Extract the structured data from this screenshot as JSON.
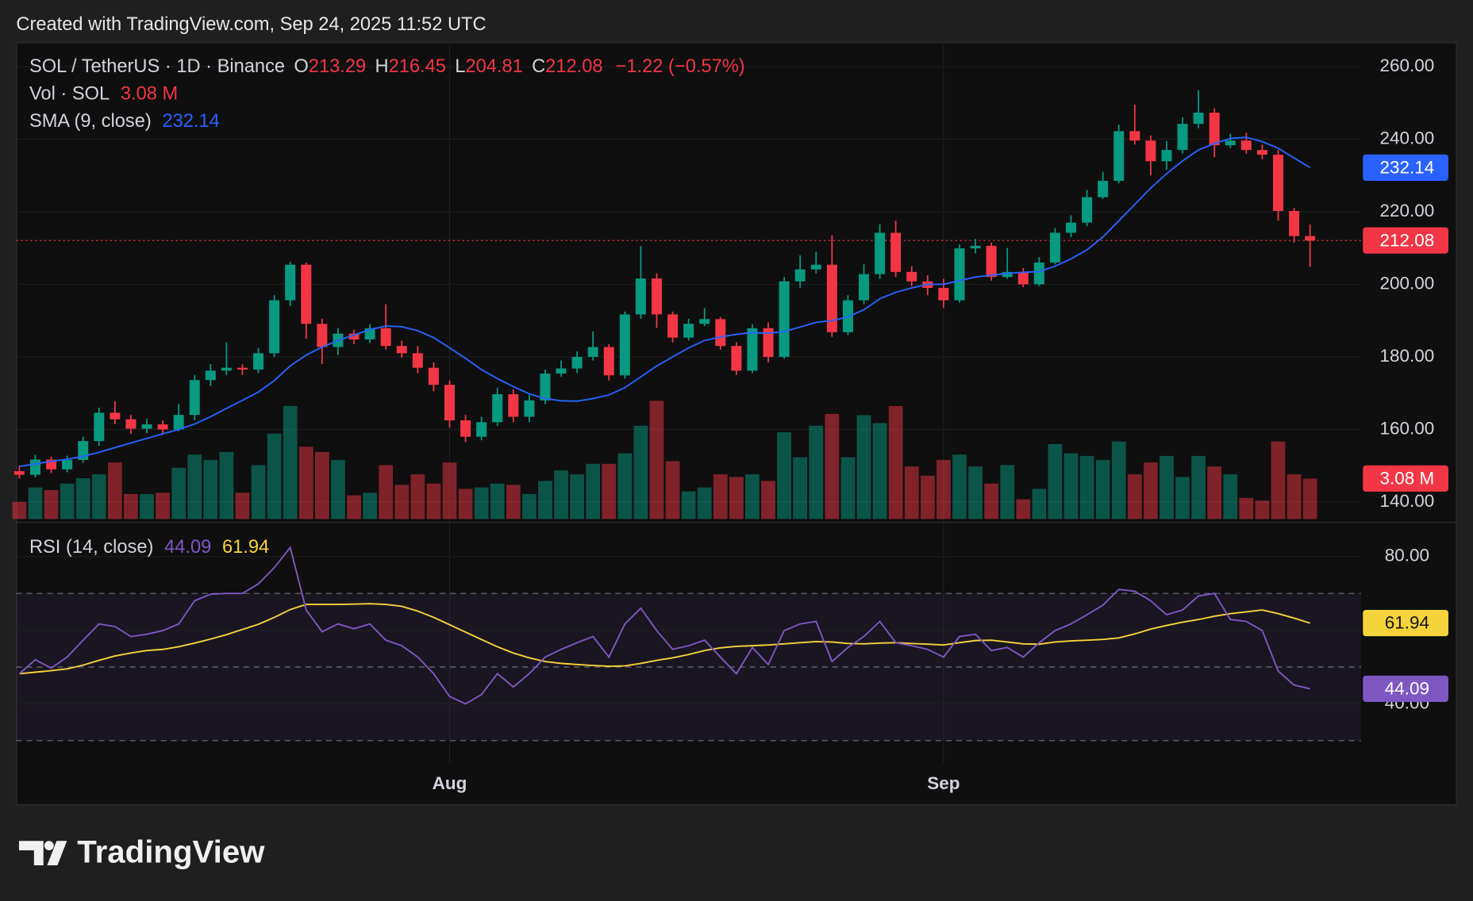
{
  "header": {
    "created": "Created with TradingView.com, Sep 24, 2025 11:52 UTC"
  },
  "footer": {
    "brand": "TradingView"
  },
  "chart_data": {
    "type": "candlestick",
    "symbol": "SOL / TetherUS · 1D · Binance",
    "legend_keys": [
      "O",
      "H",
      "L",
      "C"
    ],
    "change_label": "−1.22 (−0.57%)",
    "up_color": "#089981",
    "down_color": "#f23645",
    "open": [
      148.5,
      147.5,
      151.7,
      149,
      151.6,
      156.8,
      164.6,
      162.8,
      160.2,
      161.4,
      160,
      164,
      173.6,
      176.2,
      177,
      176.5,
      181,
      195.6,
      205.4,
      189.1,
      182.7,
      186.4,
      184.8,
      187.9,
      183,
      181,
      177,
      172.3,
      162.5,
      158,
      162,
      169.7,
      163.5,
      168,
      175.4,
      176.8,
      180,
      182.7,
      174.9,
      191.7,
      201.6,
      191.7,
      185.3,
      189.1,
      190.4,
      183,
      176.2,
      187.9,
      180,
      200.8,
      204.1,
      205.4,
      186.8,
      195.6,
      202.8,
      214.2,
      203.4,
      200.8,
      199,
      195.6,
      209.9,
      210.6,
      202,
      203.4,
      200,
      206,
      214.2,
      217,
      224,
      228.5,
      242.2,
      239.6,
      233.9,
      237,
      244.2,
      247.3,
      238.3,
      239.6,
      237,
      235.7,
      220.2,
      213.29
    ],
    "high": [
      150,
      153,
      152.5,
      152.8,
      158,
      166,
      167.8,
      164,
      163,
      162.5,
      167,
      175,
      178,
      184,
      178,
      182.5,
      197,
      206.2,
      206,
      190.5,
      188,
      187.5,
      189,
      194.5,
      184.5,
      183,
      178.5,
      173.5,
      164,
      163.5,
      171.5,
      171,
      169.5,
      176.5,
      179,
      181.5,
      187,
      183.5,
      192.5,
      210.5,
      203,
      192.5,
      190.5,
      193.5,
      191,
      184,
      189,
      189.5,
      202,
      208,
      209,
      213.5,
      197,
      205.5,
      216.5,
      217.5,
      205,
      202.5,
      201.5,
      211,
      212.5,
      211.5,
      210,
      204.5,
      207.5,
      215.5,
      219,
      226,
      231,
      244,
      249.5,
      241,
      239.5,
      246,
      253.5,
      248.5,
      241.5,
      241.8,
      238.5,
      237,
      221,
      216.45
    ],
    "low": [
      146.5,
      146.8,
      148,
      148.2,
      150.8,
      155.5,
      161.5,
      158.8,
      159,
      158.5,
      159.5,
      162.5,
      172,
      175,
      175,
      175.5,
      180,
      194,
      185,
      178,
      180.5,
      183.5,
      183.8,
      182,
      179.8,
      175.5,
      170.5,
      160.5,
      156.5,
      157,
      161,
      162,
      162,
      167,
      174.5,
      175.5,
      179,
      173.5,
      174,
      190.5,
      188,
      184,
      184.5,
      188.5,
      182,
      175,
      175.5,
      178.5,
      179.5,
      199,
      203,
      185.5,
      186,
      194.5,
      201.5,
      202,
      199.5,
      197,
      193.5,
      195,
      208.5,
      201,
      201.5,
      199.2,
      199.5,
      205.5,
      213,
      216,
      223.5,
      227.8,
      238.5,
      230,
      231.5,
      236,
      243,
      235,
      237.5,
      236,
      234.5,
      217.5,
      211.5,
      204.81
    ],
    "close": [
      147.5,
      151.7,
      149,
      151.6,
      156.8,
      164.6,
      162.8,
      160.2,
      161.4,
      160,
      164,
      173.6,
      176.2,
      177,
      176.5,
      181,
      195.6,
      205.4,
      189.1,
      182.7,
      186.4,
      184.8,
      187.9,
      183,
      181,
      177,
      172.3,
      162.5,
      158,
      162,
      169.7,
      163.5,
      168,
      175.4,
      176.8,
      180,
      182.7,
      174.9,
      191.7,
      201.6,
      191.7,
      185.3,
      189.1,
      190.4,
      183,
      176.2,
      187.9,
      180,
      200.8,
      204.1,
      205.4,
      186.8,
      195.6,
      202.8,
      214.2,
      203.4,
      200.8,
      199,
      195.6,
      209.9,
      210.6,
      202,
      203.4,
      200,
      206,
      214.2,
      217,
      224,
      228.5,
      242.2,
      239.6,
      233.9,
      237,
      244.2,
      247.3,
      238.3,
      239.6,
      237,
      235.7,
      220.2,
      213.29,
      212.08
    ],
    "ylim": [
      134.8,
      266.7
    ],
    "yticks": [
      {
        "value": 140,
        "label": "140.00"
      },
      {
        "value": 160,
        "label": "160.00"
      },
      {
        "value": 180,
        "label": "180.00"
      },
      {
        "value": 200,
        "label": "200.00"
      },
      {
        "value": 220,
        "label": "220.00"
      },
      {
        "value": 240,
        "label": "240.00"
      },
      {
        "value": 260,
        "label": "260.00"
      }
    ],
    "xlim": [
      -0.2,
      84.2
    ],
    "xticks": [
      {
        "value": 27,
        "label": "Aug"
      },
      {
        "value": 58,
        "label": "Sep"
      }
    ],
    "grid": true,
    "volume": {
      "name": "Vol · SOL",
      "last_value_label": "3.08 M",
      "values": [
        1.3,
        2.4,
        2.2,
        2.7,
        3.1,
        3.4,
        4.3,
        1.9,
        1.9,
        2.0,
        3.9,
        4.9,
        4.5,
        5.1,
        2.0,
        4.1,
        6.5,
        8.6,
        5.5,
        5.1,
        4.5,
        1.8,
        2.0,
        4.1,
        2.6,
        3.4,
        2.7,
        4.3,
        2.3,
        2.4,
        2.7,
        2.6,
        1.9,
        2.9,
        3.7,
        3.4,
        4.2,
        4.2,
        5.0,
        7.1,
        9.0,
        4.4,
        2.1,
        2.4,
        3.4,
        3.2,
        3.4,
        2.9,
        6.6,
        4.7,
        7.1,
        8.0,
        4.7,
        7.9,
        7.3,
        8.6,
        4.0,
        3.3,
        4.5,
        4.9,
        4.0,
        2.7,
        4.1,
        1.5,
        2.3,
        5.7,
        5.0,
        4.8,
        4.5,
        5.9,
        3.4,
        4.3,
        4.8,
        3.2,
        4.8,
        4.0,
        3.4,
        1.6,
        1.4,
        5.9,
        3.4,
        3.08
      ]
    },
    "sma": {
      "name": "SMA (9, close)",
      "color": "#2962ff",
      "values": [
        149.8,
        150.5,
        151.2,
        151.8,
        152.6,
        153.7,
        155,
        156.3,
        157.5,
        158.8,
        160,
        161.5,
        163.5,
        165.8,
        168,
        170.3,
        173.5,
        177.5,
        180.5,
        182.7,
        184.5,
        186,
        187.5,
        188.5,
        188.3,
        187.2,
        185.3,
        182.5,
        179.6,
        176.5,
        174,
        171.8,
        169.8,
        168.5,
        167.9,
        167.8,
        168.5,
        169.5,
        171.5,
        174.5,
        177.5,
        180,
        182.5,
        184.5,
        185.5,
        186.2,
        186.7,
        186.5,
        187,
        188.2,
        189.5,
        190,
        191,
        193,
        196,
        197.8,
        199,
        200,
        200,
        201,
        202,
        202.5,
        203,
        203.3,
        203.5,
        205,
        207,
        209.5,
        213,
        217.5,
        222,
        226.5,
        230.5,
        234,
        237,
        238.8,
        240.2,
        240.5,
        239.3,
        237.5,
        234.8,
        232.14
      ]
    },
    "rsi": {
      "name": "RSI (14, close)",
      "color": "#7e57c2",
      "values": [
        48.2,
        52,
        49.7,
        52.7,
        57.3,
        61.7,
        61,
        58.3,
        58.9,
        59.9,
        61.7,
        68,
        69.8,
        70,
        70,
        72.6,
        77,
        82.5,
        65.5,
        59.6,
        61.7,
        60.4,
        61.7,
        57.3,
        55.8,
        52.7,
        48.2,
        42,
        40,
        42.5,
        48.2,
        44.6,
        48.2,
        52.7,
        54.8,
        56.6,
        58.3,
        52.7,
        61.7,
        66,
        59.9,
        54.8,
        55.8,
        57.3,
        52.7,
        48.2,
        55.3,
        50.7,
        59.9,
        61.7,
        62.4,
        51.5,
        55.3,
        58.3,
        62.4,
        56.6,
        55.8,
        54.8,
        52.7,
        58.3,
        58.9,
        54.5,
        55.3,
        52.7,
        56.6,
        59.9,
        61.7,
        64.2,
        66.8,
        71.1,
        70.6,
        68,
        64.2,
        65.5,
        69.3,
        70,
        62.9,
        62.4,
        59.9,
        48.9,
        45.1,
        44.09
      ]
    },
    "rsi_ma": {
      "color": "#f5d33b",
      "values": [
        48.2,
        48.6,
        49,
        49.5,
        50.5,
        51.8,
        53,
        53.8,
        54.5,
        54.8,
        55.5,
        56.5,
        57.6,
        58.8,
        60.2,
        61.6,
        63.5,
        65.6,
        67,
        67,
        67,
        67.1,
        67.2,
        67,
        66.5,
        65.2,
        63.5,
        61.5,
        59.5,
        57.5,
        55.5,
        53.8,
        52.5,
        51.5,
        51,
        50.7,
        50.4,
        50.2,
        50.3,
        51,
        51.8,
        52.5,
        53.4,
        54.5,
        55.2,
        55.6,
        55.8,
        56,
        56.3,
        56.6,
        56.9,
        56.8,
        56.4,
        56.3,
        56.5,
        56.6,
        56.4,
        56.2,
        56,
        56.6,
        57.2,
        57.3,
        56.8,
        56.3,
        56.2,
        56.8,
        57.1,
        57.3,
        57.5,
        57.9,
        59,
        60.3,
        61.3,
        62.2,
        62.9,
        63.8,
        64.5,
        65,
        65.5,
        64.5,
        63.3,
        61.94
      ]
    },
    "rsi_ylim": [
      23.4,
      89.2
    ],
    "rsi_yticks": [
      {
        "value": 80,
        "label": "80.00"
      },
      {
        "value": 60,
        "label": "60.00"
      },
      {
        "value": 40,
        "label": "40.00"
      }
    ],
    "rsi_bands": [
      70,
      50,
      30
    ]
  }
}
